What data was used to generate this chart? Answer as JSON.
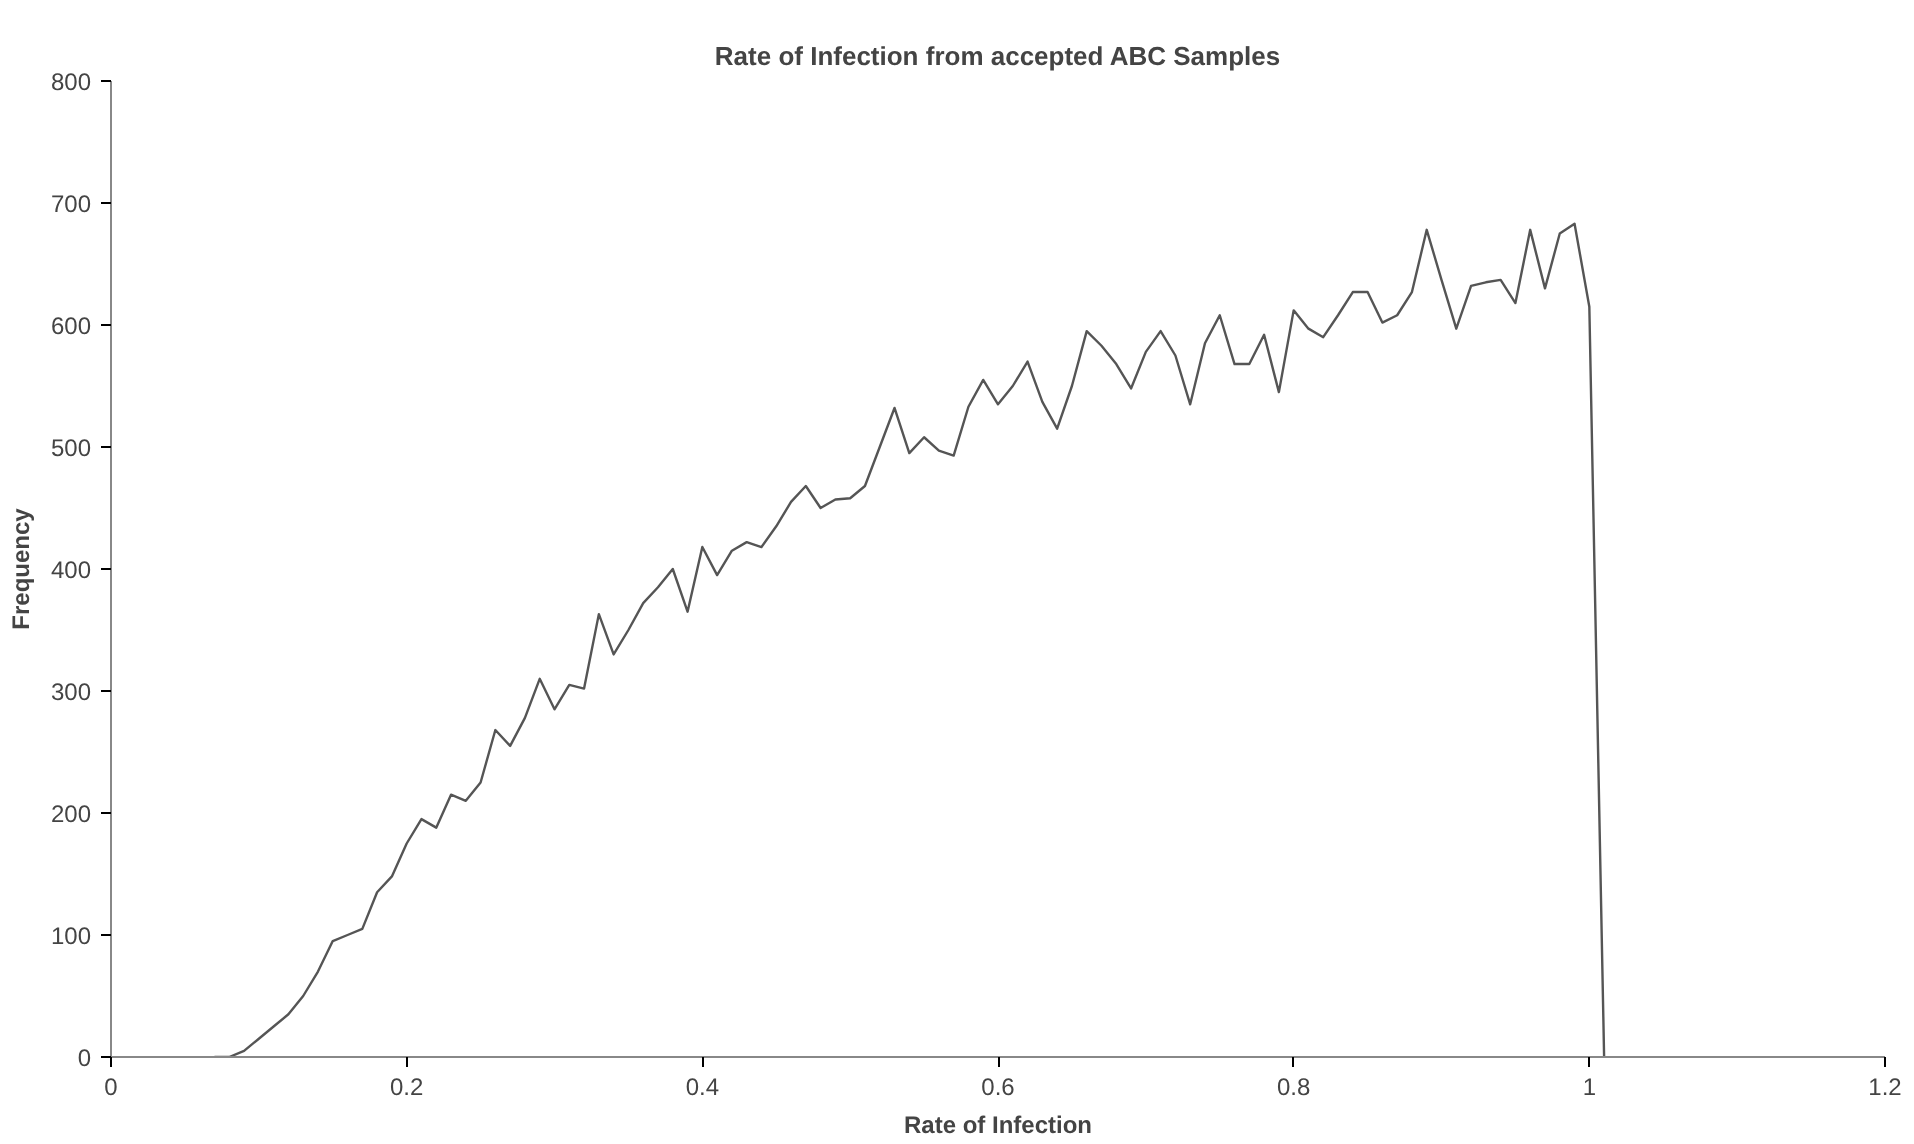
{
  "chart_data": {
    "type": "line",
    "title": "Rate of Infection from accepted ABC Samples",
    "xlabel": "Rate of Infection",
    "ylabel": "Frequency",
    "x": [
      0.07,
      0.08,
      0.09,
      0.1,
      0.11,
      0.12,
      0.13,
      0.14,
      0.15,
      0.16,
      0.17,
      0.18,
      0.19,
      0.2,
      0.21,
      0.22,
      0.23,
      0.24,
      0.25,
      0.26,
      0.27,
      0.28,
      0.29,
      0.3,
      0.31,
      0.32,
      0.33,
      0.34,
      0.35,
      0.36,
      0.37,
      0.38,
      0.39,
      0.4,
      0.41,
      0.42,
      0.43,
      0.44,
      0.45,
      0.46,
      0.47,
      0.48,
      0.49,
      0.5,
      0.51,
      0.52,
      0.53,
      0.54,
      0.55,
      0.56,
      0.57,
      0.58,
      0.59,
      0.6,
      0.61,
      0.62,
      0.63,
      0.64,
      0.65,
      0.66,
      0.67,
      0.68,
      0.69,
      0.7,
      0.71,
      0.72,
      0.73,
      0.74,
      0.75,
      0.76,
      0.77,
      0.78,
      0.79,
      0.8,
      0.81,
      0.82,
      0.83,
      0.84,
      0.85,
      0.86,
      0.87,
      0.88,
      0.89,
      0.9,
      0.91,
      0.92,
      0.93,
      0.94,
      0.95,
      0.96,
      0.97,
      0.98,
      0.99,
      1.0,
      1.01
    ],
    "series": [
      {
        "color": "#555555",
        "values": [
          0,
          0,
          5,
          15,
          25,
          35,
          50,
          70,
          95,
          100,
          105,
          135,
          148,
          175,
          195,
          188,
          215,
          210,
          225,
          268,
          255,
          278,
          310,
          285,
          305,
          302,
          363,
          330,
          350,
          372,
          385,
          400,
          365,
          418,
          395,
          415,
          422,
          418,
          435,
          455,
          468,
          450,
          457,
          458,
          468,
          500,
          532,
          495,
          508,
          497,
          493,
          533,
          555,
          535,
          550,
          570,
          537,
          515,
          550,
          595,
          583,
          568,
          548,
          578,
          595,
          575,
          535,
          585,
          608,
          568,
          568,
          592,
          545,
          612,
          597,
          590,
          608,
          627,
          627,
          602,
          608,
          627,
          678,
          637,
          597,
          632,
          635,
          637,
          618,
          678,
          630,
          675,
          683,
          615,
          0
        ]
      }
    ],
    "xlim": [
      0,
      1.2
    ],
    "xticks": [
      0,
      0.2,
      0.4,
      0.6,
      0.8,
      1,
      1.2
    ],
    "ylim": [
      0,
      800
    ],
    "yticks": [
      0,
      100,
      200,
      300,
      400,
      500,
      600,
      700,
      800
    ],
    "grid": false
  }
}
